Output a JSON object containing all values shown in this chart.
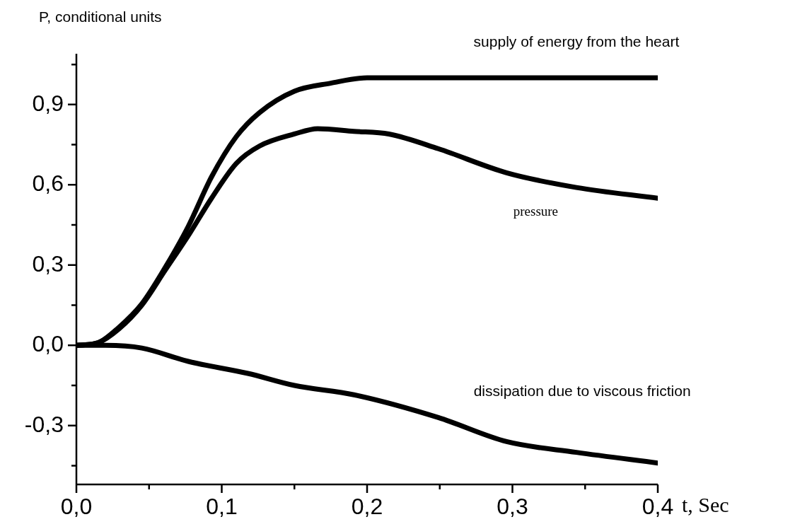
{
  "chart_data": {
    "type": "line",
    "xlabel": "t, Sec",
    "ylabel": "P, conditional units",
    "xlim": [
      0,
      0.4
    ],
    "ylim": [
      -0.52,
      1.09
    ],
    "xticks": [
      {
        "value": 0,
        "label": "0,0"
      },
      {
        "value": 0.05,
        "label": null
      },
      {
        "value": 0.1,
        "label": "0,1"
      },
      {
        "value": 0.15,
        "label": null
      },
      {
        "value": 0.2,
        "label": "0,2"
      },
      {
        "value": 0.25,
        "label": null
      },
      {
        "value": 0.3,
        "label": "0,3"
      },
      {
        "value": 0.35,
        "label": null
      },
      {
        "value": 0.4,
        "label": "0,4"
      }
    ],
    "yticks": [
      {
        "value": -0.45,
        "label": null
      },
      {
        "value": -0.3,
        "label": "-0,3"
      },
      {
        "value": -0.15,
        "label": null
      },
      {
        "value": 0,
        "label": "0,0"
      },
      {
        "value": 0.15,
        "label": null
      },
      {
        "value": 0.3,
        "label": "0,3"
      },
      {
        "value": 0.45,
        "label": null
      },
      {
        "value": 0.6,
        "label": "0,6"
      },
      {
        "value": 0.75,
        "label": null
      },
      {
        "value": 0.9,
        "label": "0,9"
      },
      {
        "value": 1.05,
        "label": null
      }
    ],
    "grid": false,
    "legend": false,
    "marker": "none",
    "line_style": "solid",
    "series": [
      {
        "name": "supply of energy from the heart",
        "color": "#000000",
        "x": [
          0,
          0.015,
          0.029,
          0.045,
          0.061,
          0.077,
          0.093,
          0.11,
          0.126,
          0.15,
          0.175,
          0.2,
          0.25,
          0.3,
          0.35,
          0.4
        ],
        "values": [
          0,
          0.01,
          0.066,
          0.155,
          0.29,
          0.445,
          0.63,
          0.78,
          0.87,
          0.95,
          0.98,
          1.0,
          1.0,
          1.0,
          1.0,
          1.0
        ]
      },
      {
        "name": "pressure",
        "color": "#000000",
        "x": [
          0,
          0.015,
          0.029,
          0.045,
          0.061,
          0.077,
          0.093,
          0.11,
          0.126,
          0.15,
          0.166,
          0.191,
          0.215,
          0.249,
          0.296,
          0.344,
          0.4
        ],
        "values": [
          0,
          0.01,
          0.06,
          0.15,
          0.28,
          0.41,
          0.55,
          0.68,
          0.745,
          0.79,
          0.81,
          0.8,
          0.79,
          0.735,
          0.645,
          0.59,
          0.55
        ]
      },
      {
        "name": "dissipation due to viscous friction",
        "color": "#000000",
        "x": [
          0,
          0.02,
          0.045,
          0.077,
          0.118,
          0.15,
          0.191,
          0.249,
          0.296,
          0.344,
          0.4
        ],
        "values": [
          0,
          0,
          -0.01,
          -0.06,
          -0.105,
          -0.15,
          -0.185,
          -0.27,
          -0.36,
          -0.4,
          -0.44
        ]
      }
    ]
  }
}
